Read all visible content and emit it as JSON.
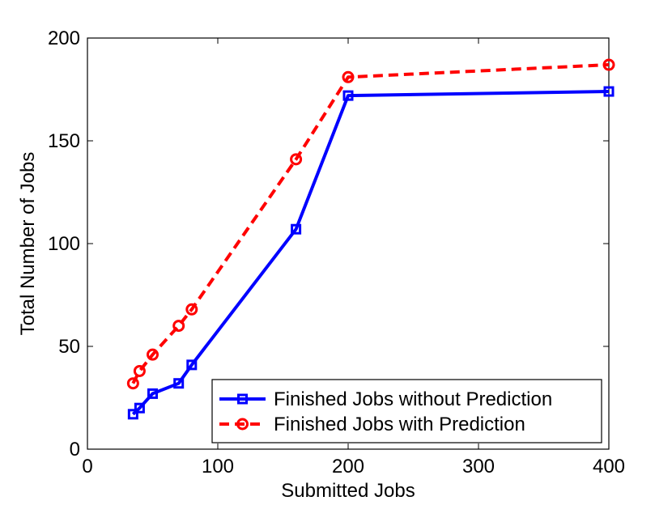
{
  "chart_data": {
    "type": "line",
    "title": "",
    "xlabel": "Submitted Jobs",
    "ylabel": "Total Number of Jobs",
    "x_ticks": [
      "0",
      "100",
      "200",
      "300",
      "400"
    ],
    "y_ticks": [
      "0",
      "50",
      "100",
      "150",
      "200"
    ],
    "ylim": [
      0,
      200
    ],
    "grid": false,
    "legend_position": "bottom-right",
    "series": [
      {
        "name": "Finished Jobs without Prediction",
        "color": "#0000ff",
        "line_style": "solid",
        "marker": "square",
        "x": [
          35,
          40,
          50,
          70,
          80,
          160,
          200,
          400
        ],
        "y": [
          17,
          20,
          27,
          32,
          41,
          107,
          172,
          174
        ]
      },
      {
        "name": "Finished Jobs with Prediction",
        "color": "#ff0000",
        "line_style": "dashed",
        "marker": "circle",
        "x": [
          35,
          40,
          50,
          70,
          80,
          160,
          200,
          400
        ],
        "y": [
          32,
          38,
          46,
          60,
          68,
          141,
          181,
          187
        ]
      }
    ]
  }
}
